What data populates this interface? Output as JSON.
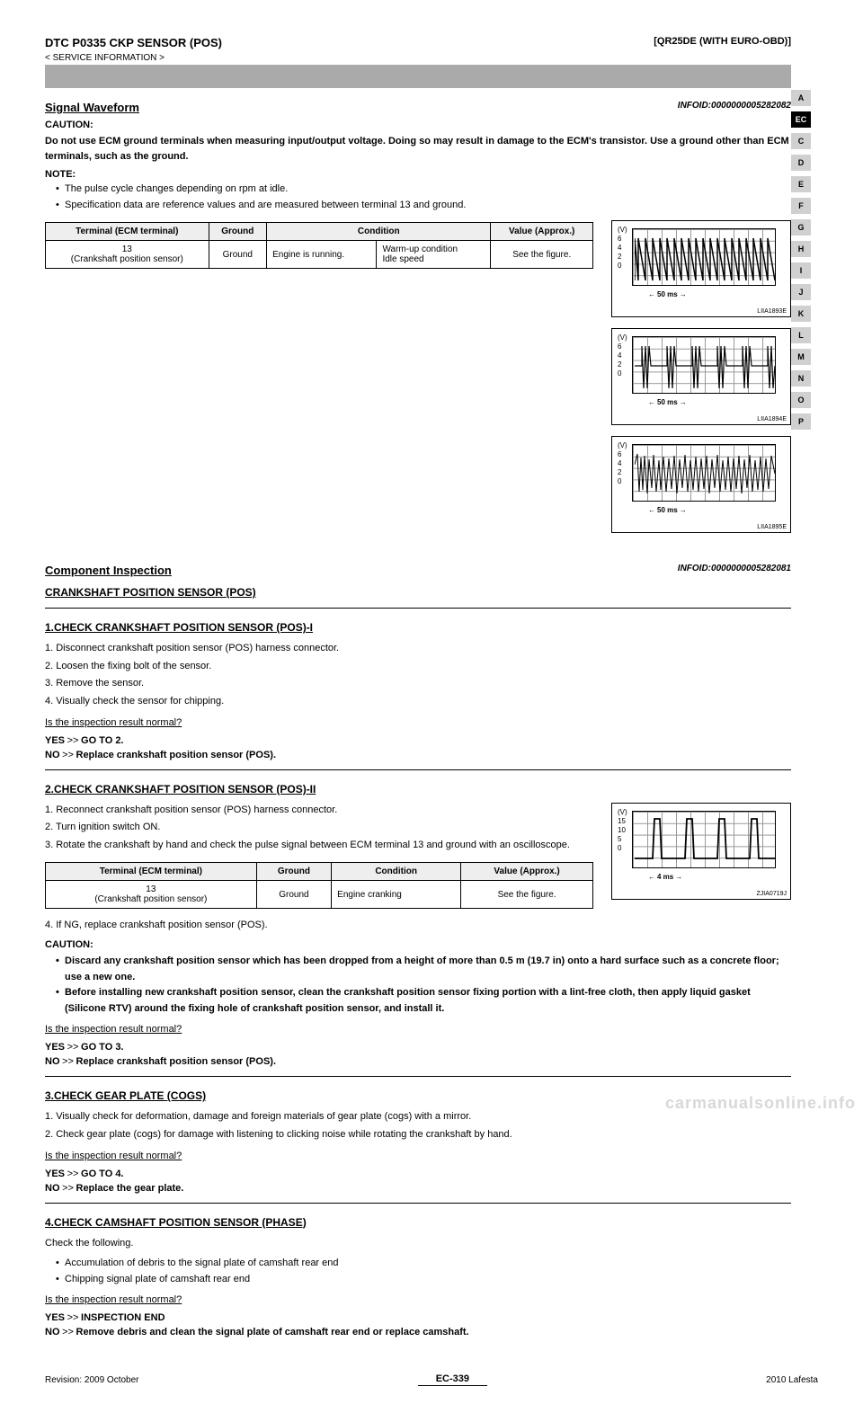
{
  "header": {
    "section": "DTC P0335 CKP SENSOR (POS)",
    "breadcrumb1": "[QR25DE (WITH EURO-OBD)]",
    "breadcrumb2": "< SERVICE INFORMATION >"
  },
  "grayBar": "DTC P0335 CKP SENSOR (POS)",
  "sideTabs": [
    "A",
    "EC",
    "C",
    "D",
    "E",
    "F",
    "G",
    "H",
    "I",
    "J",
    "K",
    "L",
    "M",
    "N",
    "O",
    "P"
  ],
  "activeTab": "EC",
  "compInspection": {
    "title": "Component Inspection",
    "infoId": "INFOID:0000000005282081",
    "sub": "CRANKSHAFT POSITION SENSOR (POS)",
    "step1": {
      "heading": "1.CHECK CRANKSHAFT POSITION SENSOR (POS)-I",
      "items": [
        "1. Disconnect crankshaft position sensor (POS) harness connector.",
        "2. Loosen the fixing bolt of the sensor.",
        "3. Remove the sensor.",
        "4. Visually check the sensor for chipping."
      ],
      "resultQ": "Is the inspection result normal?",
      "yes": "GO TO 2.",
      "no": "Replace crankshaft position sensor (POS)."
    },
    "step2": {
      "heading": "2.CHECK CRANKSHAFT POSITION SENSOR (POS)-II",
      "items": [
        "1. Reconnect crankshaft position sensor (POS) harness connector.",
        "2. Turn ignition switch ON.",
        "3. Rotate the crankshaft by hand and check the pulse signal between ECM terminal 13 and ground with an oscilloscope."
      ],
      "spec": {
        "terminal": "13\n(Crankshaft position sensor)",
        "ground": "Ground",
        "condition": "Engine cranking",
        "value": "See the figure."
      },
      "postItems": [
        "4. If NG, replace crankshaft position sensor (POS)."
      ],
      "cautionLabel": "CAUTION:",
      "cautions": [
        "Discard any crankshaft position sensor which has been dropped from a height of more than 0.5 m (19.7 in) onto a hard surface such as a concrete floor; use a new one.",
        "Before installing new crankshaft position sensor, clean the crankshaft position sensor fixing portion with a lint-free cloth, then apply liquid gasket (Silicone RTV) around the fixing hole of crankshaft position sensor, and install it."
      ],
      "resultQ": "Is the inspection result normal?",
      "yes": "GO TO 3.",
      "no": "Replace crankshaft position sensor (POS)."
    },
    "step3": {
      "heading": "3.CHECK GEAR PLATE (COGS)",
      "items": [
        "1. Visually check for deformation, damage and foreign materials of gear plate (cogs) with a mirror.",
        "2. Check gear plate (cogs) for damage with listening to clicking noise while rotating the crankshaft by hand."
      ],
      "resultQ": "Is the inspection result normal?",
      "yes": "GO TO 4.",
      "no": "Replace the gear plate."
    },
    "step4": {
      "heading": "4.CHECK CAMSHAFT POSITION SENSOR (PHASE)",
      "lead": "Check the following.",
      "items": [
        "Accumulation of debris to the signal plate of camshaft rear end",
        "Chipping signal plate of camshaft rear end"
      ],
      "resultQ": "Is the inspection result normal?",
      "yes": "INSPECTION END",
      "no": "Remove debris and clean the signal plate of camshaft rear end or replace camshaft."
    }
  },
  "signalWaveform": {
    "title": "Signal Waveform",
    "infoId": "INFOID:0000000005282082",
    "cautionLabel": "CAUTION:",
    "caution": "Do not use ECM ground terminals when measuring input/output voltage. Doing so may result in damage to the ECM's transistor. Use a ground other than ECM terminals, such as the ground.",
    "noteLabel": "NOTE:",
    "notes": [
      "The pulse cycle changes depending on rpm at idle.",
      "Specification data are reference values and are measured between terminal 13 and ground."
    ],
    "spec": {
      "terminal": "13\n(Crankshaft position sensor)",
      "ground": "Ground",
      "condition1": "Engine is running.",
      "condition2": "Warm-up condition\nIdle speed",
      "value": "See the figure."
    }
  },
  "charts": {
    "a": {
      "ticks": [
        "(V)",
        "6",
        "4",
        "2",
        "0"
      ],
      "timebase": "50 ms",
      "id": "LIIA1893E",
      "wave_desc": "dense uniform spikes 0-5V"
    },
    "b": {
      "ticks": [
        "(V)",
        "6",
        "4",
        "2",
        "0"
      ],
      "timebase": "50 ms",
      "id": "LIIA1894E",
      "wave_desc": "grouped spike bursts"
    },
    "c": {
      "ticks": [
        "(V)",
        "6",
        "4",
        "2",
        "0"
      ],
      "timebase": "50 ms",
      "id": "LIIA1895E",
      "wave_desc": "random noise block"
    },
    "d": {
      "ticks": [
        "(V)",
        "15",
        "10",
        "5",
        "0"
      ],
      "timebase": "4 ms",
      "id": "ZJIA0719J",
      "wave_desc": "sparse tall pulses"
    }
  },
  "tableHeaders": {
    "term": "Terminal\n(ECM terminal)",
    "ground": "Ground",
    "cond": "Condition",
    "val": "Value (Approx.)"
  },
  "footer": {
    "rev": "Revision: 2009 October",
    "page": "EC-339",
    "model": "2010 Lafesta"
  },
  "watermark": "carmanualsonline.info"
}
